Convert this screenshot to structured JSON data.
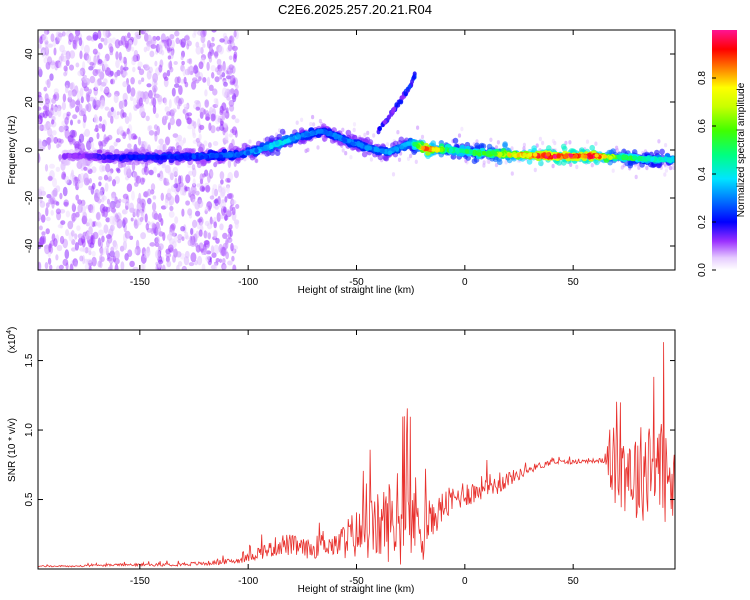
{
  "title": "C2E6.2025.257.20.21.R04",
  "chart_data": [
    {
      "type": "heatmap",
      "title": "C2E6.2025.257.20.21.R04",
      "xlabel": "Height of straight line (km)",
      "ylabel": "Frequency (Hz)",
      "xlim": [
        -197,
        97
      ],
      "ylim": [
        -50,
        50
      ],
      "x_ticks": [
        -150,
        -100,
        -50,
        0,
        50
      ],
      "x_tick_labels": [
        "-150",
        "-100",
        "-50",
        "0",
        "50"
      ],
      "y_ticks": [
        -40,
        -20,
        0,
        20,
        40
      ],
      "y_tick_labels": [
        "-40",
        "-20",
        "0",
        "20",
        "40"
      ],
      "colorbar": {
        "label": "Normalized spectral amplitude",
        "range": [
          0,
          1
        ],
        "ticks": [
          0.0,
          0.2,
          0.4,
          0.6,
          0.8
        ],
        "tick_labels": [
          "0.0",
          "0.2",
          "0.4",
          "0.6",
          "0.8"
        ]
      },
      "ridge": [
        {
          "x": -180,
          "f": -2.5,
          "a": 0.12
        },
        {
          "x": -160,
          "f": -3.0,
          "a": 0.2
        },
        {
          "x": -140,
          "f": -3.0,
          "a": 0.22
        },
        {
          "x": -120,
          "f": -2.5,
          "a": 0.25
        },
        {
          "x": -105,
          "f": -2.0,
          "a": 0.28
        },
        {
          "x": -95,
          "f": 0.0,
          "a": 0.32
        },
        {
          "x": -85,
          "f": 3.0,
          "a": 0.4
        },
        {
          "x": -75,
          "f": 6.0,
          "a": 0.3
        },
        {
          "x": -65,
          "f": 8.0,
          "a": 0.28
        },
        {
          "x": -55,
          "f": 4.0,
          "a": 0.3
        },
        {
          "x": -45,
          "f": 1.0,
          "a": 0.3
        },
        {
          "x": -35,
          "f": -1.0,
          "a": 0.32
        },
        {
          "x": -25,
          "f": 3.0,
          "a": 0.35
        },
        {
          "x": -18,
          "f": 0.5,
          "a": 0.9
        },
        {
          "x": -5,
          "f": 0.0,
          "a": 0.45
        },
        {
          "x": 10,
          "f": -1.5,
          "a": 0.55
        },
        {
          "x": 25,
          "f": -2.0,
          "a": 0.8
        },
        {
          "x": 40,
          "f": -2.5,
          "a": 0.95
        },
        {
          "x": 60,
          "f": -2.5,
          "a": 0.92
        },
        {
          "x": 70,
          "f": -3.0,
          "a": 0.55
        },
        {
          "x": 80,
          "f": -3.5,
          "a": 0.5
        },
        {
          "x": 90,
          "f": -4.0,
          "a": 0.4
        }
      ],
      "branch": [
        {
          "x": -40,
          "f": 8,
          "a": 0.18
        },
        {
          "x": -35,
          "f": 14,
          "a": 0.2
        },
        {
          "x": -30,
          "f": 20,
          "a": 0.18
        },
        {
          "x": -25,
          "f": 27,
          "a": 0.22
        },
        {
          "x": -23,
          "f": 31,
          "a": 0.25
        }
      ]
    },
    {
      "type": "line",
      "xlabel": "Height of straight line (km)",
      "ylabel": "SNR (10 * v/v)",
      "y_exponent_label": "(x10",
      "y_exponent": "4",
      "y_exponent_close": ")",
      "xlim": [
        -197,
        97
      ],
      "ylim": [
        0.0,
        1.72
      ],
      "x_ticks": [
        -150,
        -100,
        -50,
        0,
        50
      ],
      "x_tick_labels": [
        "-150",
        "-100",
        "-50",
        "0",
        "50"
      ],
      "y_ticks": [
        0.5,
        1.0,
        1.5
      ],
      "y_tick_labels": [
        "0.5",
        "1.0",
        "1.5"
      ],
      "color": "#e8312d",
      "series": [
        {
          "name": "SNR",
          "x": [
            -197,
            -180,
            -160,
            -140,
            -120,
            -105,
            -100,
            -95,
            -90,
            -85,
            -80,
            -75,
            -70,
            -65,
            -60,
            -55,
            -50,
            -45,
            -40,
            -35,
            -30,
            -25,
            -20,
            -15,
            -10,
            -5,
            0,
            5,
            10,
            15,
            20,
            25,
            30,
            40,
            50,
            60,
            65,
            67,
            70,
            75,
            80,
            85,
            90,
            95,
            97
          ],
          "values": [
            0.02,
            0.02,
            0.03,
            0.03,
            0.04,
            0.06,
            0.08,
            0.12,
            0.14,
            0.18,
            0.17,
            0.15,
            0.14,
            0.2,
            0.16,
            0.22,
            0.25,
            0.28,
            0.3,
            0.35,
            0.3,
            0.4,
            0.32,
            0.35,
            0.45,
            0.5,
            0.55,
            0.55,
            0.62,
            0.6,
            0.65,
            0.68,
            0.72,
            0.77,
            0.77,
            0.78,
            0.78,
            0.8,
            0.7,
            0.75,
            0.65,
            0.8,
            0.75,
            0.6,
            0.55
          ],
          "noise_amplitude": [
            0.005,
            0.006,
            0.008,
            0.01,
            0.015,
            0.02,
            0.03,
            0.05,
            0.06,
            0.08,
            0.08,
            0.07,
            0.07,
            0.1,
            0.08,
            0.15,
            0.18,
            0.22,
            0.25,
            0.3,
            0.28,
            0.35,
            0.3,
            0.12,
            0.12,
            0.1,
            0.1,
            0.09,
            0.08,
            0.07,
            0.06,
            0.04,
            0.03,
            0.02,
            0.015,
            0.015,
            0.02,
            0.25,
            0.3,
            0.35,
            0.35,
            0.4,
            0.45,
            0.3,
            0.3
          ]
        }
      ]
    }
  ]
}
